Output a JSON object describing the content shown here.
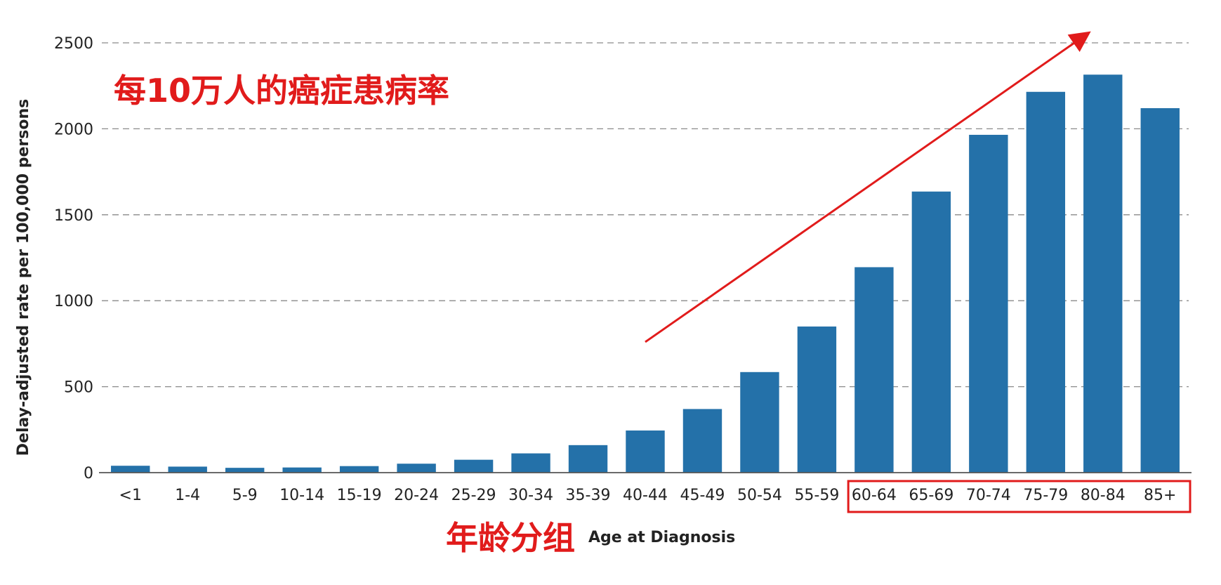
{
  "chart_data": {
    "type": "bar",
    "categories": [
      "<1",
      "1-4",
      "5-9",
      "10-14",
      "15-19",
      "20-24",
      "25-29",
      "30-34",
      "35-39",
      "40-44",
      "45-49",
      "50-54",
      "55-59",
      "60-64",
      "65-69",
      "70-74",
      "75-79",
      "80-84",
      "85+"
    ],
    "values": [
      40,
      35,
      28,
      30,
      38,
      52,
      75,
      112,
      160,
      245,
      370,
      585,
      850,
      1195,
      1635,
      1965,
      2215,
      2315,
      2120
    ],
    "xlabel": "Age at Diagnosis",
    "ylabel": "Delay-adjusted rate per 100,000 persons",
    "ylim": [
      0,
      2500
    ],
    "yticks": [
      0,
      500,
      1000,
      1500,
      2000,
      2500
    ],
    "grid": "horizontal dashed",
    "bar_color": "#2471a9",
    "annotations": {
      "overlay_title": "每10万人的癌症患病率",
      "overlay_xlabel": "年龄分组",
      "highlight_range": [
        "60-64",
        "85+"
      ],
      "trend_arrow": "rising",
      "color": "#e11b1b"
    }
  }
}
